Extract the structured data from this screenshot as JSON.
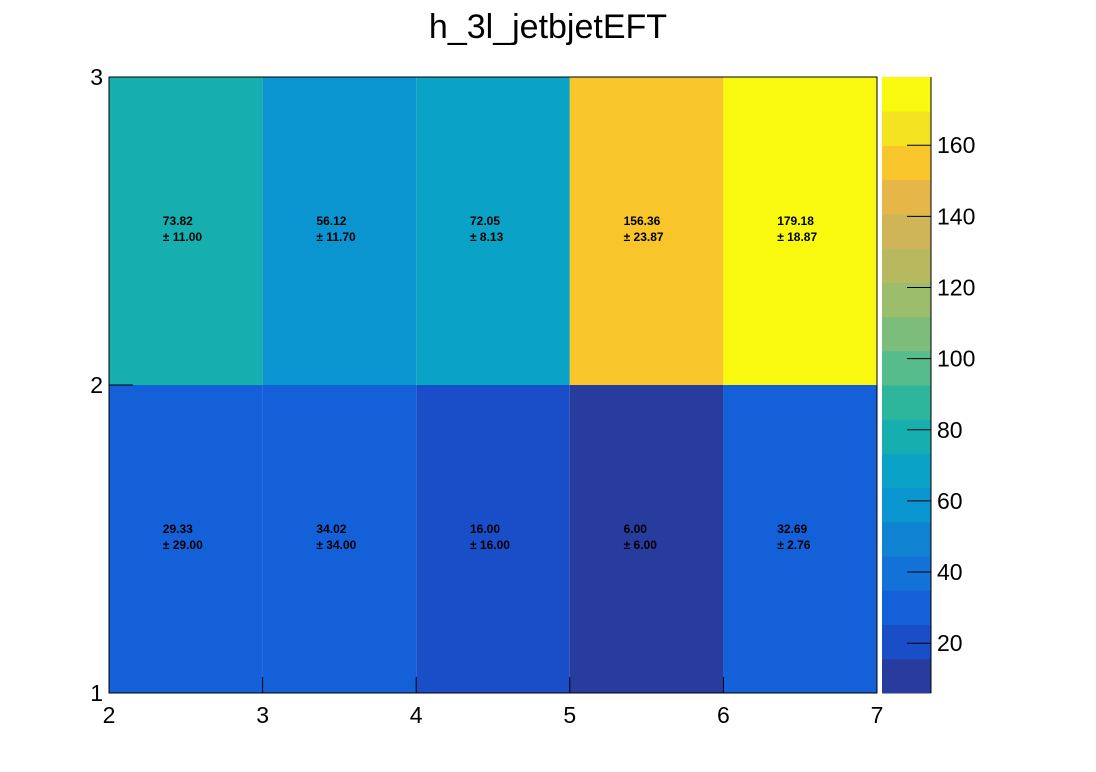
{
  "chart_data": {
    "type": "heatmap",
    "title": "h_3l_jetbjetEFT",
    "xlabel": "",
    "ylabel": "",
    "x_edges": [
      2,
      3,
      4,
      5,
      6,
      7
    ],
    "y_edges": [
      1,
      2,
      3
    ],
    "x_ticks": [
      2,
      3,
      4,
      5,
      6,
      7
    ],
    "y_ticks": [
      1,
      2,
      3
    ],
    "xlim": [
      2,
      7
    ],
    "ylim": [
      1,
      3
    ],
    "cells": [
      {
        "x": 2.5,
        "y": 1.5,
        "value": 29.33,
        "error": 29.0,
        "value_label": "29.33",
        "error_label": "± 29.00"
      },
      {
        "x": 3.5,
        "y": 1.5,
        "value": 34.02,
        "error": 34.0,
        "value_label": "34.02",
        "error_label": "± 34.00"
      },
      {
        "x": 4.5,
        "y": 1.5,
        "value": 16.0,
        "error": 16.0,
        "value_label": "16.00",
        "error_label": "± 16.00"
      },
      {
        "x": 5.5,
        "y": 1.5,
        "value": 6.0,
        "error": 6.0,
        "value_label": "6.00",
        "error_label": "± 6.00"
      },
      {
        "x": 6.5,
        "y": 1.5,
        "value": 32.69,
        "error": 2.76,
        "value_label": "32.69",
        "error_label": "± 2.76"
      },
      {
        "x": 2.5,
        "y": 2.5,
        "value": 73.82,
        "error": 11.0,
        "value_label": "73.82",
        "error_label": "± 11.00"
      },
      {
        "x": 3.5,
        "y": 2.5,
        "value": 56.12,
        "error": 11.7,
        "value_label": "56.12",
        "error_label": "± 11.70"
      },
      {
        "x": 4.5,
        "y": 2.5,
        "value": 72.05,
        "error": 8.13,
        "value_label": "72.05",
        "error_label": "± 8.13"
      },
      {
        "x": 5.5,
        "y": 2.5,
        "value": 156.36,
        "error": 23.87,
        "value_label": "156.36",
        "error_label": "± 23.87"
      },
      {
        "x": 6.5,
        "y": 2.5,
        "value": 179.18,
        "error": 18.87,
        "value_label": "179.18",
        "error_label": "± 18.87"
      }
    ],
    "colorbar": {
      "zlim": [
        6,
        179.18
      ],
      "ticks": [
        20,
        40,
        60,
        80,
        100,
        120,
        140,
        160
      ],
      "colors": [
        "#283c9e",
        "#1a4ec9",
        "#1460d8",
        "#1372d8",
        "#0f82d2",
        "#0a94d0",
        "#0aa2c6",
        "#17aeb0",
        "#2eb69c",
        "#57bc8c",
        "#7dbd7b",
        "#9cbd6c",
        "#b8b95f",
        "#d0b558",
        "#e6b748",
        "#f8c62a",
        "#f4e320",
        "#f9f90f"
      ]
    },
    "grid": false,
    "legend": "none"
  }
}
